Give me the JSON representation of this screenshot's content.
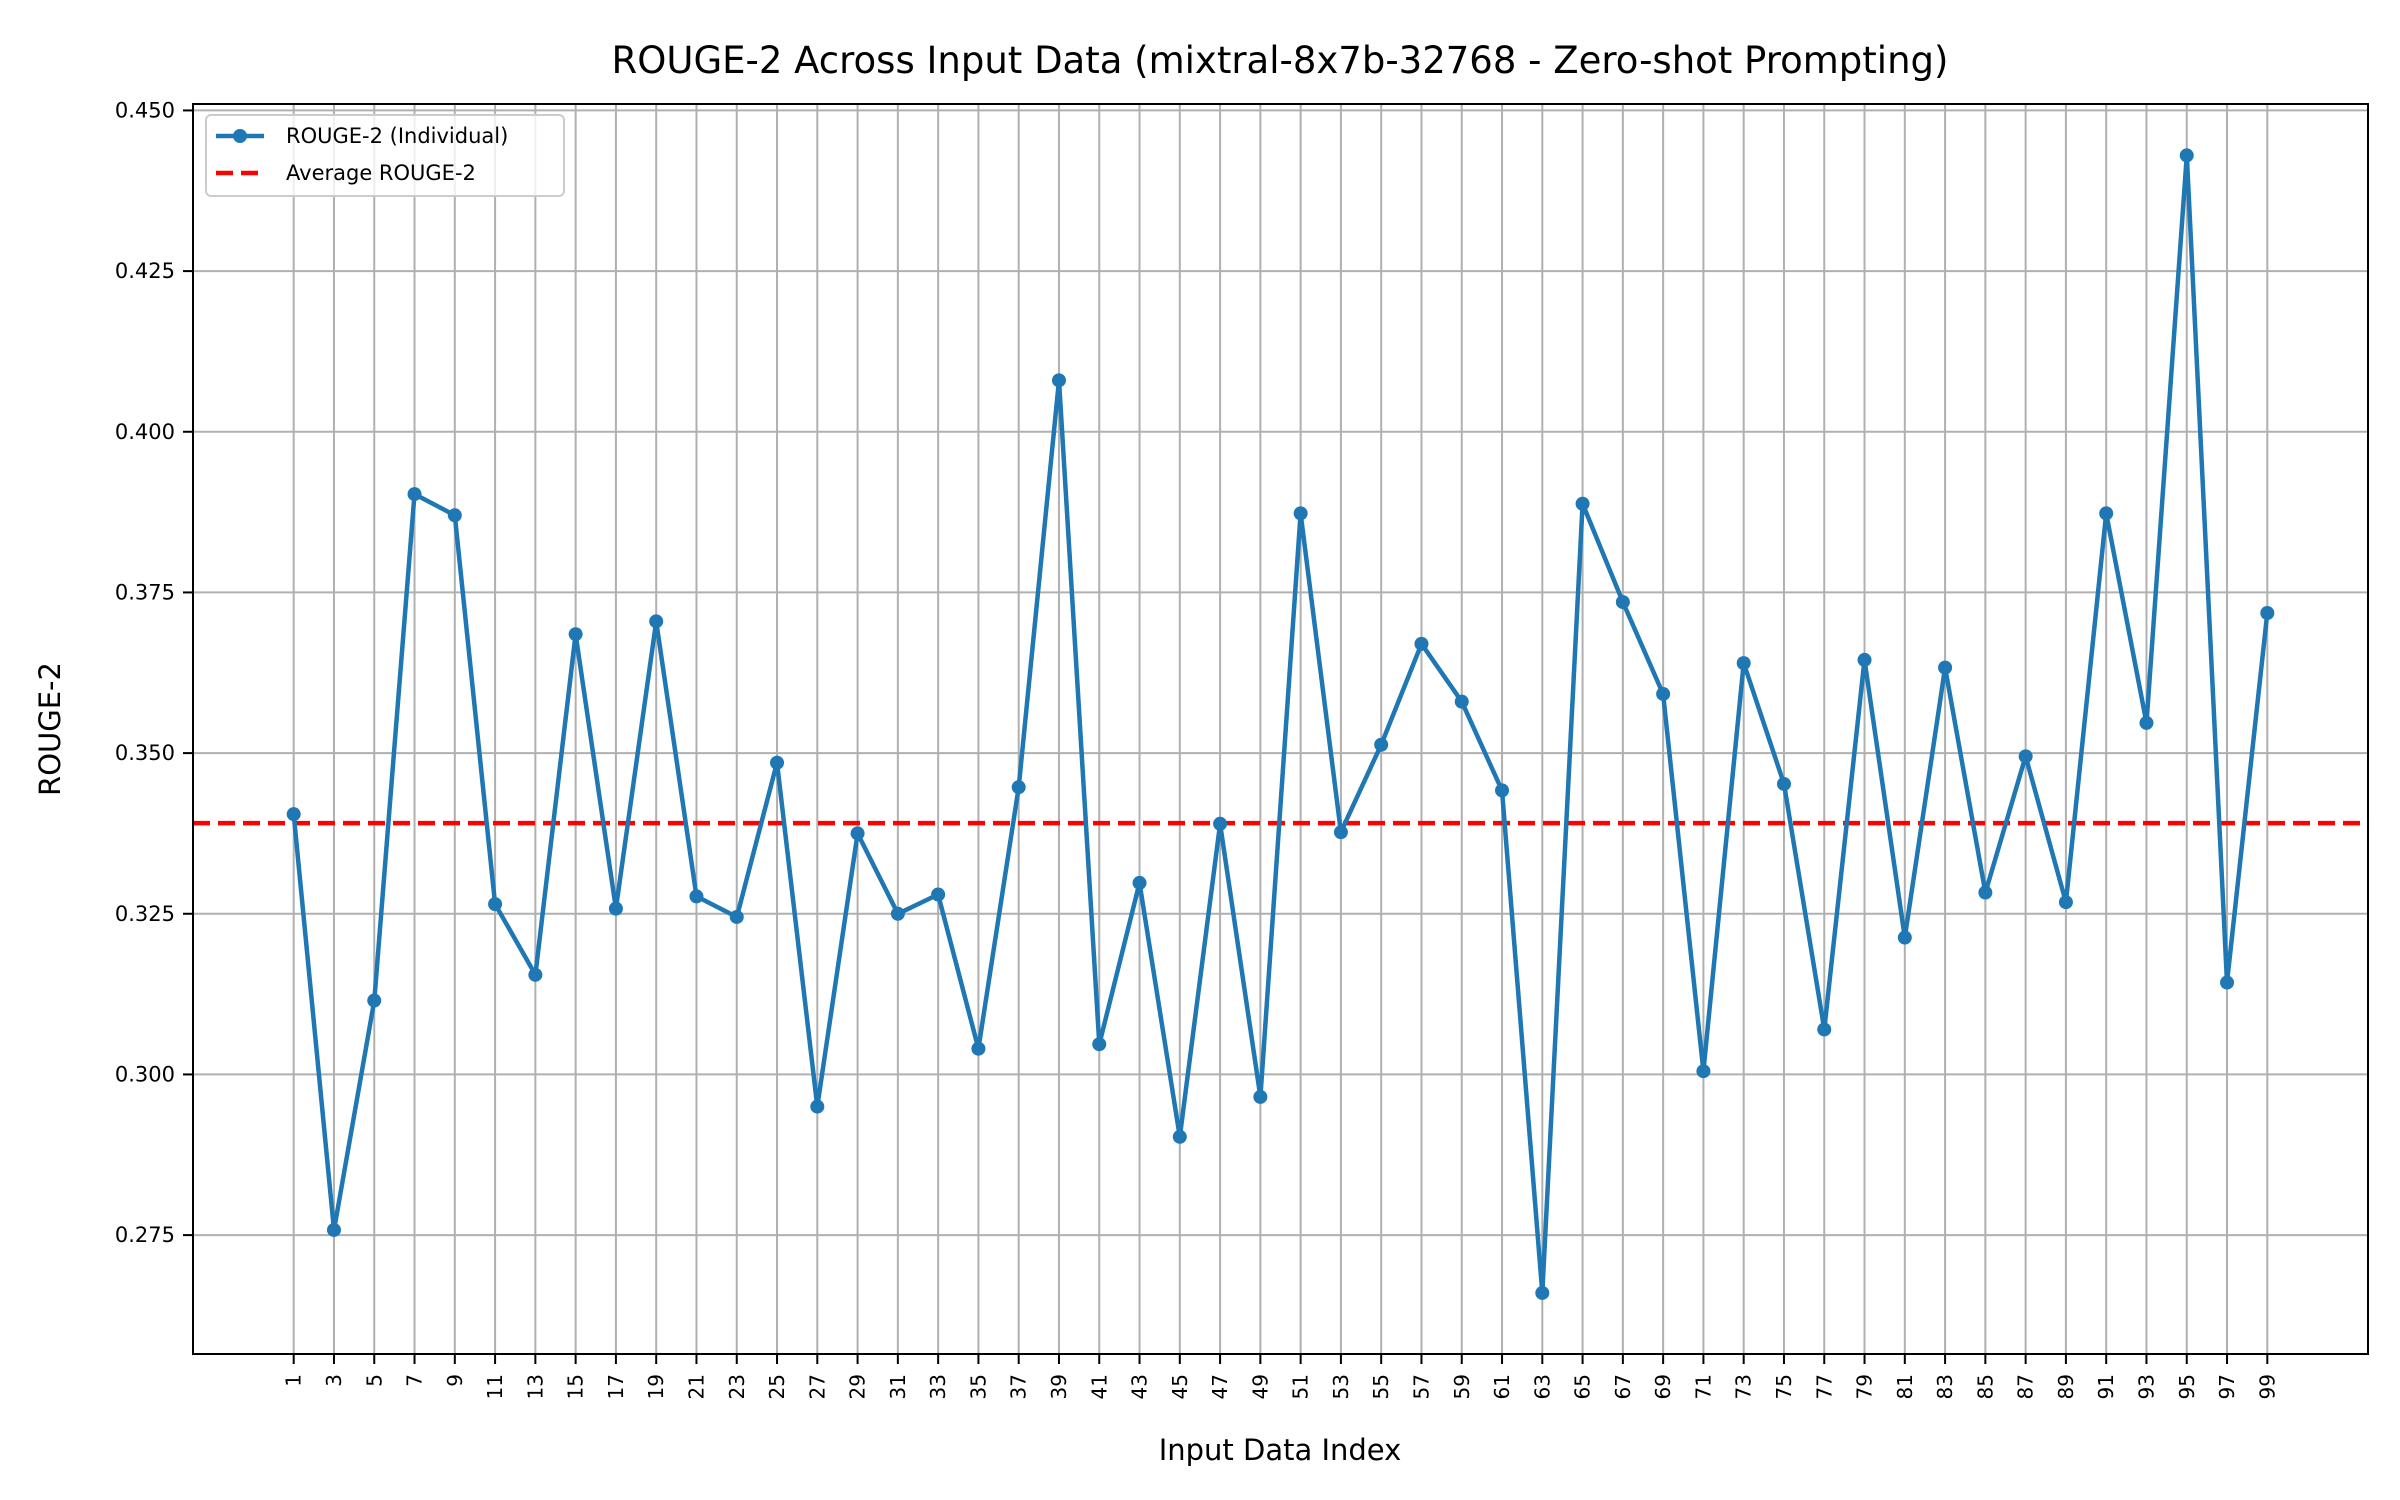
{
  "chart_data": {
    "type": "line",
    "title": "ROUGE-2 Across Input Data (mixtral-8x7b-32768 - Zero-shot Prompting)",
    "xlabel": "Input Data Index",
    "ylabel": "ROUGE-2",
    "x": [
      1,
      3,
      5,
      7,
      9,
      11,
      13,
      15,
      17,
      19,
      21,
      23,
      25,
      27,
      29,
      31,
      33,
      35,
      37,
      39,
      41,
      43,
      45,
      47,
      49,
      51,
      53,
      55,
      57,
      59,
      61,
      63,
      65,
      67,
      69,
      71,
      73,
      75,
      77,
      79,
      81,
      83,
      85,
      87,
      89,
      91,
      93,
      95,
      97,
      99
    ],
    "xlim": [
      -4,
      104
    ],
    "ylim": [
      0.2565,
      0.451
    ],
    "yticks": [
      0.275,
      0.3,
      0.325,
      0.35,
      0.375,
      0.4,
      0.425,
      0.45
    ],
    "ytick_labels": [
      "0.275",
      "0.300",
      "0.325",
      "0.350",
      "0.375",
      "0.400",
      "0.425",
      "0.450"
    ],
    "xtick_labels": [
      "1",
      "3",
      "5",
      "7",
      "9",
      "11",
      "13",
      "15",
      "17",
      "19",
      "21",
      "23",
      "25",
      "27",
      "29",
      "31",
      "33",
      "35",
      "37",
      "39",
      "41",
      "43",
      "45",
      "47",
      "49",
      "51",
      "53",
      "55",
      "57",
      "59",
      "61",
      "63",
      "65",
      "67",
      "69",
      "71",
      "73",
      "75",
      "77",
      "79",
      "81",
      "83",
      "85",
      "87",
      "89",
      "91",
      "93",
      "95",
      "97",
      "99"
    ],
    "grid": true,
    "legend_position": "top-left",
    "series": [
      {
        "name": "ROUGE-2 (Individual)",
        "style": "line-with-markers",
        "color": "#1f77b4",
        "values": [
          0.3405,
          0.2758,
          0.3115,
          0.3903,
          0.387,
          0.3265,
          0.3155,
          0.3685,
          0.3258,
          0.3705,
          0.3277,
          0.3245,
          0.3485,
          0.295,
          0.3375,
          0.325,
          0.328,
          0.304,
          0.3447,
          0.408,
          0.3047,
          0.3298,
          0.2903,
          0.339,
          0.2965,
          0.3873,
          0.3377,
          0.3513,
          0.367,
          0.358,
          0.3442,
          0.266,
          0.3888,
          0.3735,
          0.3592,
          0.3005,
          0.364,
          0.3452,
          0.307,
          0.3645,
          0.3213,
          0.3633,
          0.3283,
          0.3495,
          0.3268,
          0.3873,
          0.3547,
          0.443,
          0.3143,
          0.3718
        ]
      },
      {
        "name": "Average ROUGE-2",
        "style": "dashed",
        "color": "#ff0000",
        "constant": 0.3391
      }
    ]
  }
}
